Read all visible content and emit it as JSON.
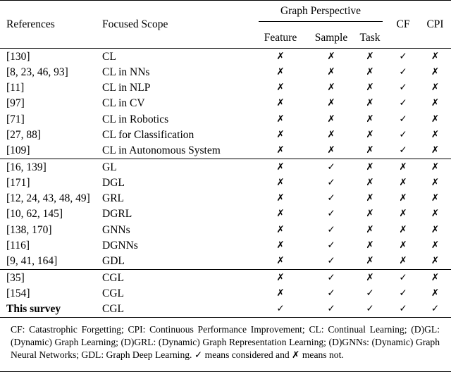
{
  "table": {
    "headers": {
      "references": "References",
      "focused_scope": "Focused Scope",
      "graph_perspective": "Graph Perspective",
      "feature": "Feature",
      "sample": "Sample",
      "task": "Task",
      "cf": "CF",
      "cpi": "CPI"
    },
    "marks": {
      "yes": "✓",
      "no": "✗"
    },
    "rows": [
      {
        "ref": "[130]",
        "scope": "CL",
        "feature": "✗",
        "sample": "✗",
        "task": "✗",
        "cf": "✓",
        "cpi": "✗",
        "rule_after": false,
        "bold": false
      },
      {
        "ref": "[8, 23, 46, 93]",
        "scope": "CL in NNs",
        "feature": "✗",
        "sample": "✗",
        "task": "✗",
        "cf": "✓",
        "cpi": "✗",
        "rule_after": false,
        "bold": false
      },
      {
        "ref": "[11]",
        "scope": "CL in NLP",
        "feature": "✗",
        "sample": "✗",
        "task": "✗",
        "cf": "✓",
        "cpi": "✗",
        "rule_after": false,
        "bold": false
      },
      {
        "ref": "[97]",
        "scope": "CL in CV",
        "feature": "✗",
        "sample": "✗",
        "task": "✗",
        "cf": "✓",
        "cpi": "✗",
        "rule_after": false,
        "bold": false
      },
      {
        "ref": "[71]",
        "scope": "CL in Robotics",
        "feature": "✗",
        "sample": "✗",
        "task": "✗",
        "cf": "✓",
        "cpi": "✗",
        "rule_after": false,
        "bold": false
      },
      {
        "ref": "[27, 88]",
        "scope": "CL for Classification",
        "feature": "✗",
        "sample": "✗",
        "task": "✗",
        "cf": "✓",
        "cpi": "✗",
        "rule_after": false,
        "bold": false
      },
      {
        "ref": "[109]",
        "scope": "CL in Autonomous System",
        "feature": "✗",
        "sample": "✗",
        "task": "✗",
        "cf": "✓",
        "cpi": "✗",
        "rule_after": true,
        "bold": false
      },
      {
        "ref": "[16, 139]",
        "scope": "GL",
        "feature": "✗",
        "sample": "✓",
        "task": "✗",
        "cf": "✗",
        "cpi": "✗",
        "rule_after": false,
        "bold": false
      },
      {
        "ref": "[171]",
        "scope": "DGL",
        "feature": "✗",
        "sample": "✓",
        "task": "✗",
        "cf": "✗",
        "cpi": "✗",
        "rule_after": false,
        "bold": false
      },
      {
        "ref": "[12, 24, 43, 48, 49]",
        "scope": "GRL",
        "feature": "✗",
        "sample": "✓",
        "task": "✗",
        "cf": "✗",
        "cpi": "✗",
        "rule_after": false,
        "bold": false
      },
      {
        "ref": "[10, 62, 145]",
        "scope": "DGRL",
        "feature": "✗",
        "sample": "✓",
        "task": "✗",
        "cf": "✗",
        "cpi": "✗",
        "rule_after": false,
        "bold": false
      },
      {
        "ref": "[138, 170]",
        "scope": "GNNs",
        "feature": "✗",
        "sample": "✓",
        "task": "✗",
        "cf": "✗",
        "cpi": "✗",
        "rule_after": false,
        "bold": false
      },
      {
        "ref": "[116]",
        "scope": "DGNNs",
        "feature": "✗",
        "sample": "✓",
        "task": "✗",
        "cf": "✗",
        "cpi": "✗",
        "rule_after": false,
        "bold": false
      },
      {
        "ref": "[9, 41, 164]",
        "scope": "GDL",
        "feature": "✗",
        "sample": "✓",
        "task": "✗",
        "cf": "✗",
        "cpi": "✗",
        "rule_after": true,
        "bold": false
      },
      {
        "ref": "[35]",
        "scope": "CGL",
        "feature": "✗",
        "sample": "✓",
        "task": "✗",
        "cf": "✓",
        "cpi": "✗",
        "rule_after": false,
        "bold": false
      },
      {
        "ref": "[154]",
        "scope": "CGL",
        "feature": "✗",
        "sample": "✓",
        "task": "✓",
        "cf": "✓",
        "cpi": "✗",
        "rule_after": false,
        "bold": false
      },
      {
        "ref": "This survey",
        "scope": "CGL",
        "feature": "✓",
        "sample": "✓",
        "task": "✓",
        "cf": "✓",
        "cpi": "✓",
        "rule_after": true,
        "bold": true
      }
    ],
    "footnote": "CF: Catastrophic Forgetting; CPI: Continuous Performance Improvement; CL: Continual Learning; (D)GL: (Dynamic) Graph Learning; (D)GRL: (Dynamic) Graph Representation Learning; (D)GNNs: (Dynamic) Graph Neural Networks; GDL: Graph Deep Learning. ✓ means considered and ✗ means not."
  }
}
